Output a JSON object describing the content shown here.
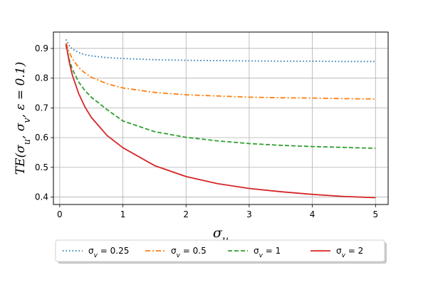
{
  "chart_data": {
    "type": "line",
    "ylabel": "TE(σ_u, σ_v, ε = 0.1)",
    "xlabel": "σ_u",
    "xlim": [
      -0.1,
      5.2
    ],
    "ylim": [
      0.375,
      0.955
    ],
    "x_ticks": [
      "0",
      "1",
      "2",
      "3",
      "4",
      "5"
    ],
    "y_ticks": [
      "0.4",
      "0.5",
      "0.6",
      "0.7",
      "0.8",
      "0.9"
    ],
    "grid": true,
    "legend_position": "bottom",
    "x": [
      0.1,
      0.15,
      0.2,
      0.3,
      0.4,
      0.5,
      0.75,
      1.0,
      1.5,
      2.0,
      2.5,
      3.0,
      3.5,
      4.0,
      4.5,
      5.0
    ],
    "series": [
      {
        "name": "σ_v = 0.25",
        "color": "#1f77b4",
        "style": "dotted",
        "values": [
          0.93,
          0.91,
          0.898,
          0.886,
          0.879,
          0.875,
          0.869,
          0.866,
          0.862,
          0.86,
          0.859,
          0.858,
          0.857,
          0.857,
          0.856,
          0.856
        ]
      },
      {
        "name": "σ_v = 0.5",
        "color": "#ff7f0e",
        "style": "dashdot",
        "values": [
          0.918,
          0.888,
          0.865,
          0.836,
          0.817,
          0.803,
          0.781,
          0.767,
          0.752,
          0.744,
          0.74,
          0.736,
          0.734,
          0.733,
          0.731,
          0.73
        ]
      },
      {
        "name": "σ_v = 1",
        "color": "#2ca02c",
        "style": "dashed",
        "values": [
          0.91,
          0.862,
          0.83,
          0.787,
          0.758,
          0.736,
          0.694,
          0.656,
          0.62,
          0.601,
          0.589,
          0.58,
          0.574,
          0.57,
          0.567,
          0.564
        ]
      },
      {
        "name": "σ_v = 2",
        "color": "#d62728",
        "style": "solid",
        "values": [
          0.915,
          0.855,
          0.81,
          0.748,
          0.703,
          0.668,
          0.607,
          0.566,
          0.506,
          0.469,
          0.445,
          0.429,
          0.418,
          0.409,
          0.402,
          0.398
        ]
      }
    ]
  }
}
